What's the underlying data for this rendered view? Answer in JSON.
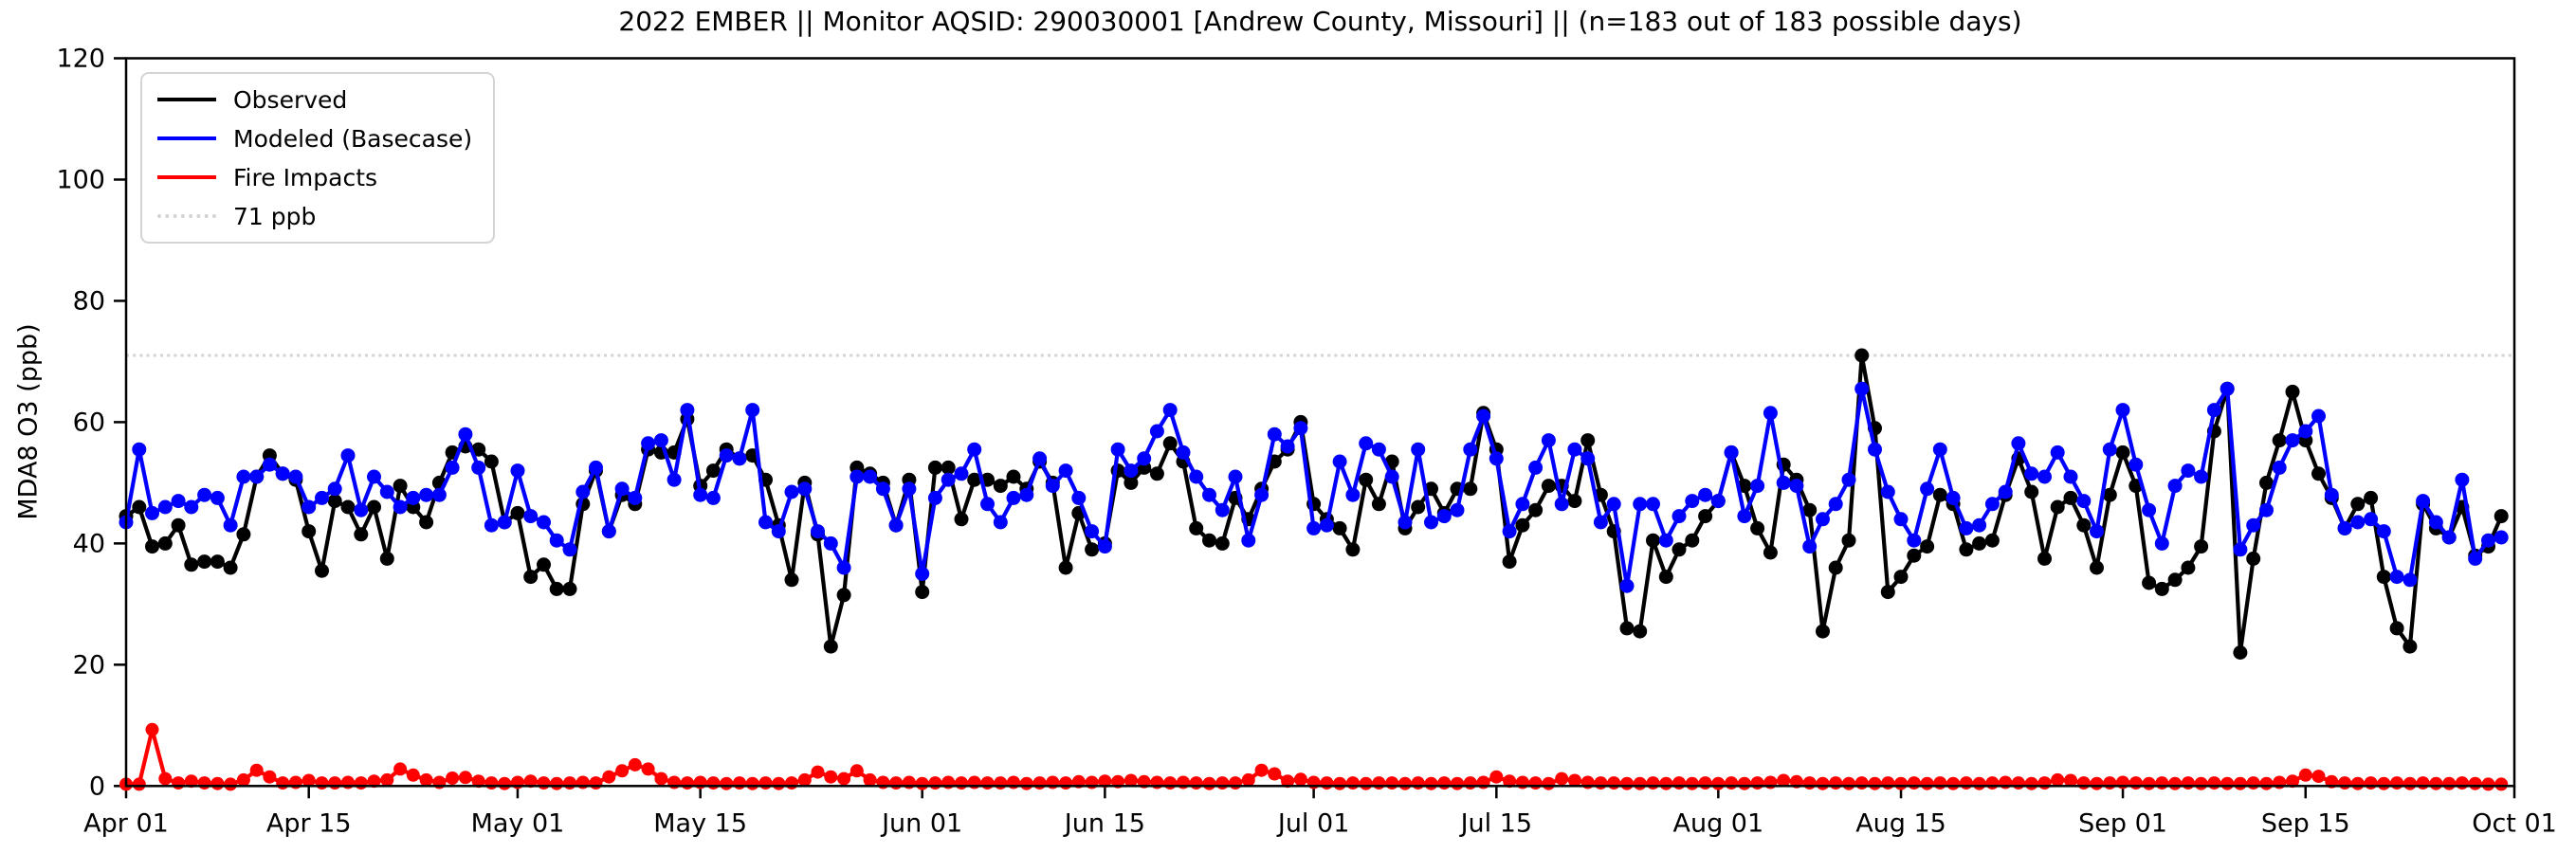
{
  "title": "2022 EMBER || Monitor AQSID: 290030001 [Andrew County, Missouri] || (n=183 out of 183 possible days)",
  "y_axis": {
    "label": "MDA8 O3 (ppb)",
    "ticks": [
      0,
      20,
      40,
      60,
      80,
      100,
      120
    ],
    "min": 0,
    "max": 120
  },
  "x_axis": {
    "ticks": [
      {
        "label": "Apr 01",
        "day": 0
      },
      {
        "label": "Apr 15",
        "day": 14
      },
      {
        "label": "May 01",
        "day": 30
      },
      {
        "label": "May 15",
        "day": 44
      },
      {
        "label": "Jun 01",
        "day": 61
      },
      {
        "label": "Jun 15",
        "day": 75
      },
      {
        "label": "Jul 01",
        "day": 91
      },
      {
        "label": "Jul 15",
        "day": 105
      },
      {
        "label": "Aug 01",
        "day": 122
      },
      {
        "label": "Aug 15",
        "day": 136
      },
      {
        "label": "Sep 01",
        "day": 153
      },
      {
        "label": "Sep 15",
        "day": 167
      },
      {
        "label": "Oct 01",
        "day": 183
      }
    ],
    "span_days": 183
  },
  "legend": [
    {
      "label": "Observed",
      "color": "#000000",
      "style": "solid"
    },
    {
      "label": "Modeled (Basecase)",
      "color": "#0000ff",
      "style": "solid"
    },
    {
      "label": "Fire Impacts",
      "color": "#ff0000",
      "style": "solid"
    },
    {
      "label": "71 ppb",
      "color": "#d3d3d3",
      "style": "dotted"
    }
  ],
  "threshold": {
    "value": 71,
    "color": "#d3d3d3"
  },
  "chart_data": {
    "type": "line",
    "x_start_date": "Apr 01",
    "x_end_date": "Sep 30",
    "n_points": 183,
    "ylabel": "MDA8 O3 (ppb)",
    "ylim": [
      0,
      120
    ],
    "grid": false,
    "legend_position": "upper left",
    "series": [
      {
        "name": "Observed",
        "color": "#000000",
        "marker": "circle",
        "values": [
          44.5,
          46,
          39.5,
          40,
          43,
          36.5,
          37,
          37,
          36,
          41.5,
          51,
          54.5,
          51.5,
          50.5,
          42,
          35.5,
          47,
          46,
          41.5,
          46,
          37.5,
          49.5,
          46,
          43.5,
          50,
          55,
          56,
          55.5,
          53.5,
          43.5,
          45,
          34.5,
          36.5,
          32.5,
          32.5,
          46.5,
          52,
          42,
          48,
          46.5,
          55.5,
          55,
          55,
          60.5,
          49.5,
          52,
          55.5,
          54,
          54.5,
          50.5,
          43,
          34,
          50,
          41.5,
          23,
          31.5,
          52.5,
          51.5,
          50,
          43,
          50.5,
          32,
          52.5,
          52.5,
          44,
          50.5,
          50.5,
          49.5,
          51,
          49,
          53.5,
          50,
          36,
          45,
          39,
          40,
          52,
          50,
          52.5,
          51.5,
          56.5,
          53.5,
          42.5,
          40.5,
          40,
          47.5,
          44,
          49,
          53.5,
          55.5,
          60,
          46.5,
          44,
          42.5,
          39,
          50.5,
          46.5,
          53.5,
          42.5,
          46,
          49,
          45,
          49,
          49,
          61.5,
          55.5,
          37,
          43,
          45.5,
          49.5,
          49.5,
          47,
          57,
          48,
          42,
          26,
          25.5,
          40.5,
          34.5,
          39,
          40.5,
          44.5,
          47,
          55,
          49.5,
          42.5,
          38.5,
          53,
          50.5,
          45.5,
          25.5,
          36,
          40.5,
          71,
          59,
          32,
          34.5,
          38,
          39.5,
          48,
          46.5,
          39,
          40,
          40.5,
          48,
          54,
          48.5,
          37.5,
          46,
          47.5,
          43,
          36,
          48,
          55,
          49.5,
          33.5,
          32.5,
          34,
          36,
          39.5,
          58.5,
          65.5,
          22,
          37.5,
          50,
          57,
          65,
          57,
          51.5,
          47.5,
          42.5,
          46.5,
          47.5,
          34.5,
          26,
          23,
          46.5,
          42.5,
          41,
          46,
          38,
          39.5,
          44.5
        ]
      },
      {
        "name": "Modeled (Basecase)",
        "color": "#0000ff",
        "marker": "circle",
        "values": [
          43.5,
          55.5,
          45,
          46,
          47,
          46,
          48,
          47.5,
          43,
          51,
          51,
          53,
          51.5,
          51,
          46,
          47.5,
          49,
          54.5,
          45.5,
          51,
          48.5,
          46,
          47.5,
          48,
          48,
          52.5,
          58,
          52.5,
          43,
          43.5,
          52,
          44.5,
          43.5,
          40.5,
          39,
          48.5,
          52.5,
          42,
          49,
          47.5,
          56.5,
          57,
          50.5,
          62,
          48,
          47.5,
          54.5,
          54,
          62,
          43.5,
          42,
          48.5,
          49,
          42,
          40,
          36,
          51,
          51,
          49,
          43,
          49,
          35,
          47.5,
          50.5,
          51.5,
          55.5,
          46.5,
          43.5,
          47.5,
          48,
          54,
          49.5,
          52,
          47.5,
          42,
          39.5,
          55.5,
          52,
          54,
          58.5,
          62,
          55,
          51,
          48,
          45.5,
          51,
          40.5,
          48,
          58,
          56,
          59,
          42.5,
          43,
          53.5,
          48,
          56.5,
          55.5,
          51,
          43.5,
          55.5,
          43.5,
          44.5,
          45.5,
          55.5,
          61,
          54,
          42,
          46.5,
          52.5,
          57,
          46.5,
          55.5,
          54,
          43.5,
          46.5,
          33,
          46.5,
          46.5,
          40.5,
          44.5,
          47,
          48,
          47,
          55,
          44.5,
          49.5,
          61.5,
          50,
          49.5,
          39.5,
          44,
          46.5,
          50.5,
          65.5,
          55.5,
          48.5,
          44,
          40.5,
          49,
          55.5,
          47.5,
          42.5,
          43,
          46.5,
          48.5,
          56.5,
          51.5,
          51,
          55,
          51,
          47,
          42,
          55.5,
          62,
          53,
          45.5,
          40,
          49.5,
          52,
          51,
          62,
          65.5,
          39,
          43,
          45.5,
          52.5,
          57,
          58.5,
          61,
          48,
          42.5,
          43.5,
          44,
          42,
          34.5,
          34,
          47,
          43.5,
          41,
          50.5,
          37.5,
          40.5,
          41
        ]
      },
      {
        "name": "Fire Impacts",
        "color": "#ff0000",
        "marker": "circle",
        "values": [
          0.3,
          0.3,
          9.3,
          1.2,
          0.5,
          0.8,
          0.5,
          0.4,
          0.3,
          1,
          2.6,
          1.5,
          0.5,
          0.6,
          0.9,
          0.5,
          0.5,
          0.6,
          0.5,
          0.8,
          1,
          2.8,
          1.8,
          1,
          0.6,
          1.3,
          1.4,
          0.8,
          0.5,
          0.4,
          0.6,
          0.8,
          0.5,
          0.4,
          0.5,
          0.6,
          0.5,
          1.5,
          2.5,
          3.5,
          2.8,
          1.2,
          0.6,
          0.5,
          0.6,
          0.5,
          0.4,
          0.5,
          0.4,
          0.5,
          0.4,
          0.5,
          1,
          2.3,
          1.5,
          1.2,
          2.5,
          1,
          0.6,
          0.5,
          0.6,
          0.4,
          0.5,
          0.6,
          0.5,
          0.6,
          0.5,
          0.5,
          0.6,
          0.4,
          0.5,
          0.6,
          0.5,
          0.7,
          0.6,
          0.8,
          0.7,
          0.9,
          0.7,
          0.6,
          0.5,
          0.6,
          0.5,
          0.4,
          0.5,
          0.5,
          1,
          2.6,
          2,
          0.8,
          1.1,
          0.6,
          0.5,
          0.4,
          0.5,
          0.4,
          0.5,
          0.5,
          0.4,
          0.5,
          0.4,
          0.5,
          0.4,
          0.5,
          0.6,
          1.5,
          0.8,
          0.6,
          0.5,
          0.4,
          1.2,
          0.9,
          0.6,
          0.5,
          0.5,
          0.4,
          0.4,
          0.5,
          0.4,
          0.5,
          0.4,
          0.5,
          0.4,
          0.5,
          0.4,
          0.5,
          0.6,
          0.9,
          0.7,
          0.5,
          0.4,
          0.5,
          0.4,
          0.5,
          0.4,
          0.5,
          0.4,
          0.5,
          0.4,
          0.5,
          0.4,
          0.5,
          0.4,
          0.5,
          0.6,
          0.5,
          0.4,
          0.5,
          1,
          0.9,
          0.5,
          0.4,
          0.5,
          0.6,
          0.5,
          0.4,
          0.5,
          0.4,
          0.5,
          0.4,
          0.5,
          0.4,
          0.4,
          0.5,
          0.4,
          0.6,
          0.8,
          1.8,
          1.6,
          0.7,
          0.5,
          0.4,
          0.5,
          0.4,
          0.5,
          0.4,
          0.5,
          0.4,
          0.4,
          0.5,
          0.4,
          0.3,
          0.3
        ]
      }
    ]
  }
}
